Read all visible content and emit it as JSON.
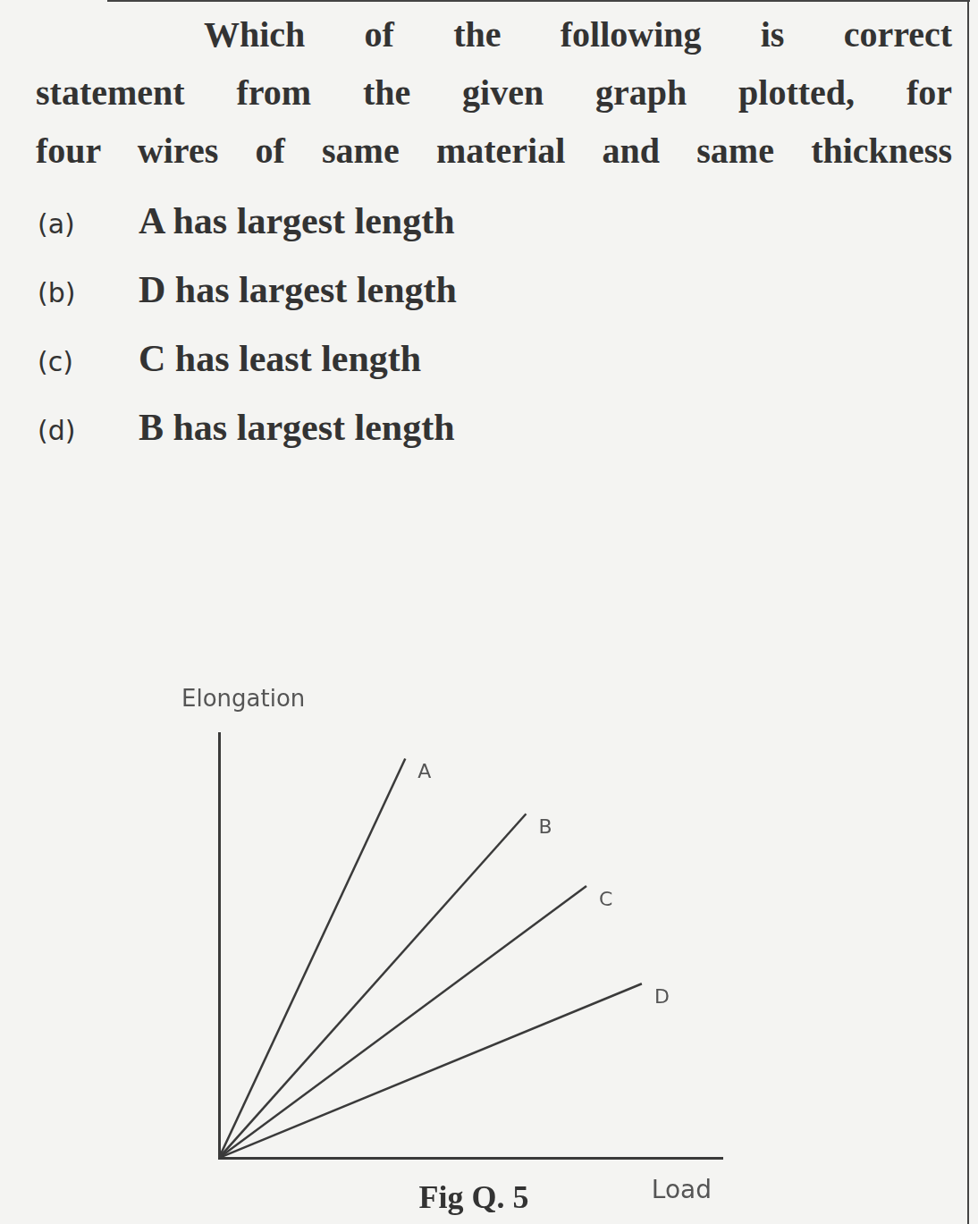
{
  "question_lines": [
    "Which of the following is correct",
    "statement from the given graph plotted, for",
    "four wires of same material and same thickness"
  ],
  "options": [
    {
      "label": "(a)",
      "text": "A has largest length"
    },
    {
      "label": "(b)",
      "text": "D has largest length"
    },
    {
      "label": "(c)",
      "text": "C has least length"
    },
    {
      "label": "(d)",
      "text": "B has largest length"
    }
  ],
  "chart_data": {
    "type": "line",
    "x_label": "Load",
    "y_label": "Elongation",
    "xlim": [
      0,
      10
    ],
    "ylim": [
      0,
      10
    ],
    "xticks": [
      0,
      10
    ],
    "yticks": [
      0,
      10
    ],
    "tick_labels": false,
    "grid": false,
    "color": "#3a3a3a",
    "series": [
      {
        "name": "A",
        "x": [
          0,
          3.7
        ],
        "values": [
          0,
          9.4
        ]
      },
      {
        "name": "B",
        "x": [
          0,
          6.1
        ],
        "values": [
          0,
          8.1
        ]
      },
      {
        "name": "C",
        "x": [
          0,
          7.3
        ],
        "values": [
          0,
          6.4
        ]
      },
      {
        "name": "D",
        "x": [
          0,
          8.4
        ],
        "values": [
          0,
          4.1
        ]
      }
    ]
  },
  "figure_caption": "Fig Q. 5"
}
